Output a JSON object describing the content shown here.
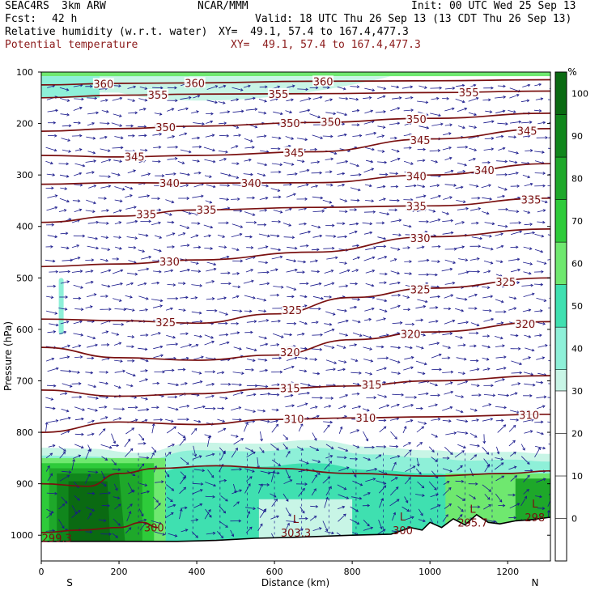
{
  "header": {
    "model": "SEAC4RS",
    "resolution": "3km ARW",
    "org": "NCAR/MMM",
    "init": "Init: 00 UTC Wed 25 Sep 13",
    "fcst_label": "Fcst:",
    "fcst_value": "42 h",
    "valid": "Valid: 18 UTC Thu 26 Sep 13 (13 CDT Thu 26 Sep 13)",
    "field1": "Relative humidity (w.r.t. water)",
    "field1_xy": "XY=  49.1, 57.4 to 167.4,477.3",
    "field2": "Potential temperature",
    "field2_xy": "XY=  49.1, 57.4 to 167.4,477.3"
  },
  "colors": {
    "contour": "#7a1010",
    "vector": "#1a1a8c",
    "rh_levels": [
      "#ffffff",
      "#ffffff",
      "#ffffff",
      "#ffffff",
      "#c8f5e6",
      "#8ef0d8",
      "#3fe0b0",
      "#6fe86f",
      "#2ecb3a",
      "#1ea82a",
      "#10861c",
      "#0a6a12"
    ]
  },
  "chart_data": {
    "type": "cross-section",
    "title": "",
    "xlabel": "Distance (km)",
    "ylabel": "Pressure (hPa)",
    "xlim": [
      0,
      1310
    ],
    "ylim": [
      1050,
      100
    ],
    "x_ticks": [
      "0",
      "200",
      "400",
      "600",
      "800",
      "1000",
      "1200"
    ],
    "y_ticks": [
      "100",
      "200",
      "300",
      "400",
      "500",
      "600",
      "700",
      "800",
      "900",
      "1000"
    ],
    "x_end_labels": {
      "left": "S",
      "right": "N"
    },
    "colorbar": {
      "unit": "%",
      "ticks": [
        "100",
        "90",
        "80",
        "70",
        "60",
        "50",
        "40",
        "30",
        "20",
        "10",
        "0"
      ],
      "levels": [
        -10,
        0,
        10,
        20,
        30,
        35,
        45,
        55,
        65,
        75,
        85,
        95,
        105
      ]
    },
    "theta_contours": [
      {
        "value": 360,
        "points": [
          [
            0,
            125
          ],
          [
            200,
            122
          ],
          [
            400,
            121
          ],
          [
            700,
            118
          ],
          [
            1000,
            117
          ],
          [
            1310,
            115
          ]
        ],
        "labels": [
          [
            160,
            360
          ],
          [
            395,
            360
          ],
          [
            725,
            360
          ]
        ]
      },
      {
        "value": 355,
        "points": [
          [
            0,
            150
          ],
          [
            200,
            145
          ],
          [
            400,
            143
          ],
          [
            700,
            142
          ],
          [
            1000,
            140
          ],
          [
            1310,
            137
          ]
        ],
        "labels": [
          [
            300,
            355
          ],
          [
            610,
            355
          ],
          [
            1100,
            355
          ]
        ]
      },
      {
        "value": 350,
        "points": [
          [
            0,
            215
          ],
          [
            200,
            210
          ],
          [
            400,
            205
          ],
          [
            700,
            198
          ],
          [
            1000,
            190
          ],
          [
            1310,
            180
          ]
        ],
        "labels": [
          [
            320,
            350
          ],
          [
            640,
            350
          ],
          [
            745,
            350
          ],
          [
            965,
            350
          ]
        ]
      },
      {
        "value": 345,
        "points": [
          [
            0,
            262
          ],
          [
            200,
            265
          ],
          [
            400,
            262
          ],
          [
            700,
            255
          ],
          [
            1000,
            230
          ],
          [
            1310,
            210
          ]
        ],
        "labels": [
          [
            240,
            345
          ],
          [
            650,
            345
          ],
          [
            975,
            345
          ],
          [
            1250,
            345
          ]
        ]
      },
      {
        "value": 340,
        "points": [
          [
            0,
            318
          ],
          [
            200,
            315
          ],
          [
            400,
            316
          ],
          [
            700,
            315
          ],
          [
            1000,
            300
          ],
          [
            1310,
            278
          ]
        ],
        "labels": [
          [
            330,
            340
          ],
          [
            540,
            340
          ],
          [
            965,
            340
          ],
          [
            1140,
            340
          ]
        ]
      },
      {
        "value": 335,
        "points": [
          [
            0,
            392
          ],
          [
            200,
            380
          ],
          [
            400,
            368
          ],
          [
            700,
            363
          ],
          [
            1000,
            360
          ],
          [
            1310,
            345
          ]
        ],
        "labels": [
          [
            270,
            335
          ],
          [
            425,
            335
          ],
          [
            965,
            335
          ],
          [
            1260,
            335
          ]
        ]
      },
      {
        "value": 330,
        "points": [
          [
            0,
            478
          ],
          [
            200,
            473
          ],
          [
            400,
            465
          ],
          [
            700,
            450
          ],
          [
            1000,
            420
          ],
          [
            1310,
            405
          ]
        ],
        "labels": [
          [
            330,
            330
          ],
          [
            975,
            330
          ]
        ]
      },
      {
        "value": 325,
        "points": [
          [
            0,
            580
          ],
          [
            200,
            583
          ],
          [
            400,
            588
          ],
          [
            600,
            570
          ],
          [
            800,
            538
          ],
          [
            1000,
            520
          ],
          [
            1310,
            500
          ]
        ],
        "labels": [
          [
            320,
            325
          ],
          [
            645,
            325
          ],
          [
            975,
            325
          ],
          [
            1195,
            325
          ]
        ]
      },
      {
        "value": 320,
        "points": [
          [
            0,
            635
          ],
          [
            200,
            655
          ],
          [
            400,
            660
          ],
          [
            600,
            650
          ],
          [
            800,
            620
          ],
          [
            1000,
            605
          ],
          [
            1310,
            585
          ]
        ],
        "labels": [
          [
            640,
            320
          ],
          [
            950,
            320
          ],
          [
            1245,
            320
          ]
        ]
      },
      {
        "value": 315,
        "points": [
          [
            0,
            718
          ],
          [
            200,
            730
          ],
          [
            400,
            725
          ],
          [
            600,
            715
          ],
          [
            800,
            710
          ],
          [
            1000,
            700
          ],
          [
            1310,
            690
          ]
        ],
        "labels": [
          [
            640,
            315
          ],
          [
            850,
            315
          ]
        ]
      },
      {
        "value": 310,
        "points": [
          [
            0,
            800
          ],
          [
            200,
            780
          ],
          [
            400,
            785
          ],
          [
            600,
            775
          ],
          [
            800,
            772
          ],
          [
            1000,
            770
          ],
          [
            1310,
            765
          ]
        ],
        "labels": [
          [
            650,
            310
          ],
          [
            835,
            310
          ],
          [
            1255,
            310
          ]
        ]
      }
    ],
    "min_labels": [
      {
        "x": 40,
        "p": 1005,
        "text": "299.3"
      },
      {
        "x": 290,
        "p": 985,
        "text": "300"
      },
      {
        "x": 655,
        "p": 995,
        "text": "303.3",
        "mark": "L"
      },
      {
        "x": 930,
        "p": 990,
        "text": "300",
        "mark": "L"
      },
      {
        "x": 1110,
        "p": 975,
        "text": "295.7",
        "mark": "L"
      },
      {
        "x": 1270,
        "p": 965,
        "text": "298",
        "mark": "L"
      }
    ]
  }
}
